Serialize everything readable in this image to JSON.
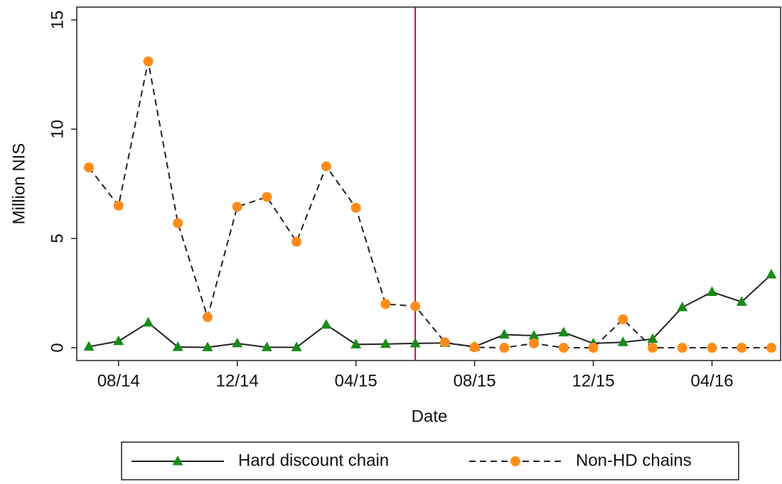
{
  "chart_data": {
    "type": "line",
    "x_label": "Date",
    "y_label": "Million NIS",
    "categories": [
      null,
      "08/14",
      null,
      null,
      null,
      "12/14",
      null,
      null,
      null,
      "04/15",
      null,
      null,
      null,
      "08/15",
      null,
      null,
      null,
      "12/15",
      null,
      null,
      null,
      "04/16",
      null,
      null
    ],
    "series": [
      {
        "name": "Hard discount chain",
        "color": "#1a8a1a",
        "line_color": "#222222",
        "line_style": "solid",
        "marker": "triangle",
        "values": [
          0.05,
          0.3,
          1.15,
          0.03,
          0.02,
          0.2,
          0.02,
          0.02,
          1.05,
          0.15,
          0.17,
          0.2,
          0.22,
          0.05,
          0.6,
          0.55,
          0.7,
          0.2,
          0.25,
          0.4,
          1.85,
          2.55,
          2.1,
          3.35
        ]
      },
      {
        "name": "Non-HD chains",
        "color": "#ff8c1a",
        "line_color": "#222222",
        "line_style": "dashed",
        "marker": "circle",
        "values": [
          8.25,
          6.5,
          13.1,
          5.7,
          1.4,
          6.45,
          6.9,
          4.85,
          8.3,
          6.4,
          2.0,
          1.9,
          0.25,
          0.02,
          0,
          0.2,
          0,
          0,
          1.3,
          0,
          0,
          0,
          0,
          0
        ]
      }
    ],
    "ylim": [
      0,
      15
    ],
    "yticks": [
      0,
      5,
      10,
      15
    ],
    "vline": {
      "index": 11,
      "color": "#c8102e"
    },
    "legend": "bottom"
  }
}
